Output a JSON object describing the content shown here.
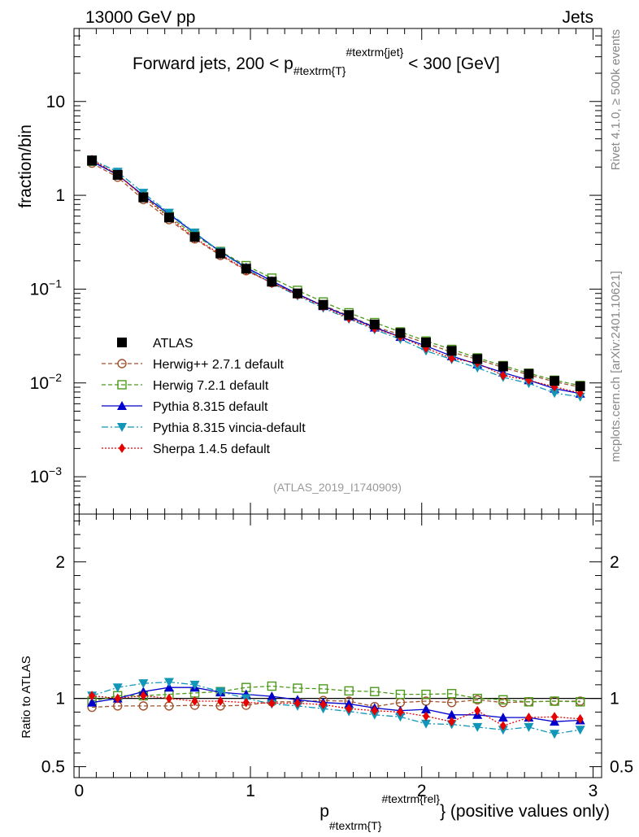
{
  "header": {
    "energy_label": "13000 GeV pp",
    "category_label": "Jets",
    "side_label_top": "Rivet 4.1.0, ≥ 500k events",
    "side_label_bottom": "mcplots.cern.ch [arXiv:2401.10621]",
    "analysis_id": "(ATLAS_2019_I1740909)"
  },
  "colors": {
    "atlas": "#000000",
    "herwigpp": "#a0522d",
    "herwig7": "#4c9a1a",
    "pythia": "#0000cc",
    "vincia": "#1196b8",
    "sherpa": "#e60000"
  },
  "chart_data": [
    {
      "type": "scatter",
      "panel": "main",
      "title_parts": {
        "pre": "Forward jets, 200 < p",
        "sub": "#textrm{T}",
        "sup": "#textrm{jet}",
        "post": " < 300 [GeV]"
      },
      "ylabel": "fraction/bin",
      "yscale": "log",
      "ylim": [
        0.0004,
        60
      ],
      "xlim": [
        -0.03,
        3.05
      ],
      "yticks": [
        {
          "value": 10,
          "base": "10",
          "exp": ""
        },
        {
          "value": 1,
          "base": "1",
          "exp": ""
        },
        {
          "value": 0.1,
          "base": "10",
          "exp": "−1"
        },
        {
          "value": 0.01,
          "base": "10",
          "exp": "−2"
        },
        {
          "value": 0.001,
          "base": "10",
          "exp": "−3"
        }
      ],
      "x": [
        0.075,
        0.225,
        0.375,
        0.525,
        0.675,
        0.825,
        0.975,
        1.125,
        1.275,
        1.425,
        1.575,
        1.725,
        1.875,
        2.025,
        2.175,
        2.325,
        2.475,
        2.625,
        2.775,
        2.925
      ],
      "series": [
        {
          "name": "ATLAS",
          "key": "atlas",
          "marker": "square-filled",
          "line": "none",
          "values": [
            2.35,
            1.65,
            0.95,
            0.58,
            0.36,
            0.24,
            0.165,
            0.12,
            0.09,
            0.068,
            0.053,
            0.042,
            0.034,
            0.027,
            0.022,
            0.018,
            0.015,
            0.0125,
            0.0105,
            0.0092
          ]
        },
        {
          "name": "Herwig++ 2.7.1 default",
          "key": "herwigpp",
          "marker": "circle-open",
          "line": "dashed",
          "values": [
            2.2,
            1.56,
            0.9,
            0.55,
            0.343,
            0.228,
            0.157,
            0.117,
            0.088,
            0.067,
            0.052,
            0.0395,
            0.033,
            0.0265,
            0.0213,
            0.0178,
            0.0146,
            0.0122,
            0.0103,
            0.009
          ]
        },
        {
          "name": "Herwig 7.2.1 default",
          "key": "herwig7",
          "marker": "square-open",
          "line": "dashed",
          "values": [
            2.3,
            1.68,
            0.97,
            0.6,
            0.375,
            0.252,
            0.178,
            0.131,
            0.097,
            0.073,
            0.056,
            0.044,
            0.035,
            0.028,
            0.0228,
            0.0185,
            0.0153,
            0.0127,
            0.0107,
            0.0094
          ]
        },
        {
          "name": "Pythia 8.315 default",
          "key": "pythia",
          "marker": "triangle-up",
          "line": "solid",
          "values": [
            2.3,
            1.65,
            1.0,
            0.63,
            0.395,
            0.25,
            0.17,
            0.122,
            0.089,
            0.066,
            0.051,
            0.039,
            0.031,
            0.0248,
            0.0193,
            0.0158,
            0.0129,
            0.0107,
            0.0087,
            0.0077
          ]
        },
        {
          "name": "Pythia 8.315 vincia-default",
          "key": "vincia",
          "marker": "triangle-down",
          "line": "dashdot",
          "values": [
            2.4,
            1.78,
            1.06,
            0.65,
            0.4,
            0.25,
            0.165,
            0.115,
            0.085,
            0.063,
            0.048,
            0.037,
            0.0293,
            0.022,
            0.0178,
            0.0145,
            0.0115,
            0.0099,
            0.0078,
            0.0071
          ]
        },
        {
          "name": "Sherpa 1.4.5 default",
          "key": "sherpa",
          "marker": "diamond",
          "line": "dotted",
          "values": [
            2.4,
            1.66,
            0.97,
            0.58,
            0.35,
            0.235,
            0.16,
            0.116,
            0.087,
            0.065,
            0.049,
            0.038,
            0.031,
            0.0235,
            0.0183,
            0.0163,
            0.012,
            0.0107,
            0.0091,
            0.0078
          ]
        }
      ]
    },
    {
      "type": "scatter",
      "panel": "ratio",
      "ylabel": "Ratio to ATLAS",
      "xlabel_parts": {
        "pre": "p",
        "sub": "#textrm{T}",
        "sup": "#textrm{rel}",
        "post": "} (positive values only)"
      },
      "ylim": [
        0.42,
        2.35
      ],
      "yscale": "linear",
      "xlim": [
        -0.03,
        3.05
      ],
      "yticks": [
        0.5,
        1,
        2
      ],
      "ytick_labels": [
        "0.5",
        "1",
        "2"
      ],
      "xticks": [
        0,
        1,
        2,
        3
      ],
      "xtick_labels": [
        "0",
        "1",
        "2",
        "3"
      ],
      "x": [
        0.075,
        0.225,
        0.375,
        0.525,
        0.675,
        0.825,
        0.975,
        1.125,
        1.275,
        1.425,
        1.575,
        1.725,
        1.875,
        2.025,
        2.175,
        2.325,
        2.475,
        2.625,
        2.775,
        2.925
      ],
      "series": [
        {
          "name": "Herwig++ 2.7.1 default",
          "key": "herwigpp",
          "values": [
            0.935,
            0.945,
            0.945,
            0.945,
            0.95,
            0.945,
            0.95,
            0.975,
            0.975,
            0.985,
            0.98,
            0.94,
            0.97,
            0.98,
            0.97,
            0.99,
            0.97,
            0.975,
            0.98,
            0.98
          ]
        },
        {
          "name": "Herwig 7.2.1 default",
          "key": "herwig7",
          "values": [
            0.98,
            1.02,
            1.02,
            1.03,
            1.04,
            1.05,
            1.08,
            1.09,
            1.075,
            1.07,
            1.055,
            1.05,
            1.03,
            1.03,
            1.035,
            1.0,
            0.99,
            0.975,
            0.98,
            0.975
          ]
        },
        {
          "name": "Pythia 8.315 default",
          "key": "pythia",
          "values": [
            0.97,
            1.0,
            1.05,
            1.08,
            1.08,
            1.045,
            1.03,
            1.015,
            0.99,
            0.97,
            0.96,
            0.93,
            0.91,
            0.92,
            0.88,
            0.88,
            0.86,
            0.86,
            0.83,
            0.84
          ]
        },
        {
          "name": "Pythia 8.315 vincia-default",
          "key": "vincia",
          "values": [
            1.02,
            1.08,
            1.11,
            1.12,
            1.1,
            1.05,
            1.0,
            0.96,
            0.945,
            0.925,
            0.905,
            0.88,
            0.865,
            0.815,
            0.81,
            0.79,
            0.77,
            0.79,
            0.74,
            0.77
          ]
        },
        {
          "name": "Sherpa 1.4.5 default",
          "key": "sherpa",
          "values": [
            1.02,
            1.0,
            1.02,
            1.0,
            0.98,
            0.98,
            0.97,
            0.965,
            0.965,
            0.955,
            0.925,
            0.91,
            0.9,
            0.87,
            0.83,
            0.91,
            0.8,
            0.86,
            0.865,
            0.85
          ]
        }
      ]
    }
  ]
}
